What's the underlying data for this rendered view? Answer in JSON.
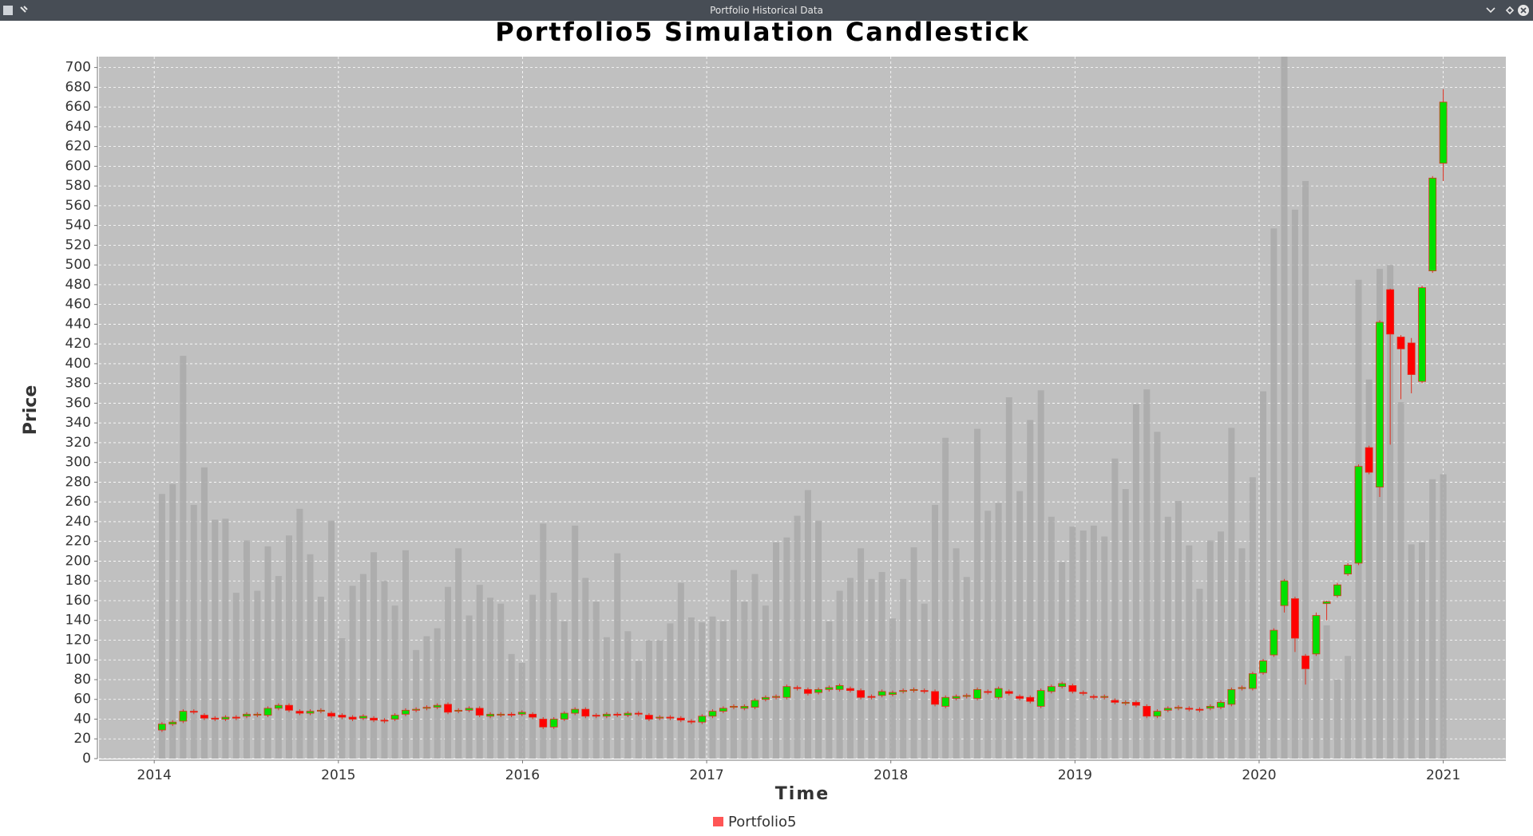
{
  "window": {
    "title": "Portfolio Historical Data"
  },
  "chart_data": {
    "type": "candlestick",
    "title": "Portfolio5 Simulation Candlestick",
    "x_label": "Time",
    "y_label": "Price",
    "x": [
      2014.042,
      2014.1,
      2014.157,
      2014.215,
      2014.272,
      2014.33,
      2014.387,
      2014.445,
      2014.502,
      2014.56,
      2014.617,
      2014.675,
      2014.732,
      2014.79,
      2014.847,
      2014.905,
      2014.962,
      2015.02,
      2015.077,
      2015.135,
      2015.192,
      2015.25,
      2015.307,
      2015.365,
      2015.422,
      2015.48,
      2015.537,
      2015.595,
      2015.652,
      2015.71,
      2015.767,
      2015.825,
      2015.882,
      2015.94,
      2015.997,
      2016.055,
      2016.112,
      2016.17,
      2016.227,
      2016.285,
      2016.342,
      2016.4,
      2016.457,
      2016.515,
      2016.572,
      2016.63,
      2016.687,
      2016.745,
      2016.802,
      2016.86,
      2016.917,
      2016.975,
      2017.032,
      2017.09,
      2017.147,
      2017.205,
      2017.262,
      2017.32,
      2017.377,
      2017.435,
      2017.492,
      2017.55,
      2017.607,
      2017.665,
      2017.722,
      2017.78,
      2017.837,
      2017.895,
      2017.952,
      2018.01,
      2018.067,
      2018.125,
      2018.182,
      2018.24,
      2018.297,
      2018.355,
      2018.412,
      2018.47,
      2018.527,
      2018.585,
      2018.642,
      2018.7,
      2018.757,
      2018.815,
      2018.872,
      2018.93,
      2018.987,
      2019.045,
      2019.102,
      2019.16,
      2019.217,
      2019.275,
      2019.332,
      2019.39,
      2019.447,
      2019.505,
      2019.562,
      2019.62,
      2019.677,
      2019.735,
      2019.792,
      2019.85,
      2019.907,
      2019.965,
      2020.022,
      2020.08,
      2020.137,
      2020.195,
      2020.252,
      2020.31,
      2020.367,
      2020.425,
      2020.482,
      2020.54,
      2020.597,
      2020.655,
      2020.712,
      2020.77,
      2020.827,
      2020.885,
      2020.942,
      2021
    ],
    "xlim": [
      2013.7,
      2021.34
    ],
    "xticks": [
      2014,
      2015,
      2016,
      2017,
      2018,
      2019,
      2020,
      2021
    ],
    "ylim": [
      0,
      711
    ],
    "yticks": [
      0,
      20,
      40,
      60,
      80,
      100,
      120,
      140,
      160,
      180,
      200,
      220,
      240,
      260,
      280,
      300,
      320,
      340,
      360,
      380,
      400,
      420,
      440,
      460,
      480,
      500,
      520,
      540,
      560,
      580,
      600,
      620,
      640,
      660,
      680,
      700
    ],
    "grid": true,
    "series": [
      {
        "name": "Portfolio5",
        "color": "#ff5555",
        "up_color": "#00e000",
        "down_color": "#ff0000",
        "outline_color": "#e03020",
        "volume_color": "#a9a9a9",
        "open": [
          29,
          35,
          38,
          48,
          44,
          41,
          40,
          42,
          43,
          44,
          44,
          51,
          54,
          48,
          46,
          48,
          46,
          44,
          42,
          41,
          41,
          39,
          40,
          45,
          49,
          51,
          52,
          55,
          48,
          49,
          51,
          43,
          44,
          45,
          45,
          45,
          40,
          32,
          40,
          46,
          50,
          44,
          43,
          45,
          44,
          46,
          44,
          41,
          42,
          41,
          38,
          37,
          43,
          48,
          52,
          51,
          52,
          60,
          62,
          62,
          72,
          70,
          67,
          70,
          70,
          71,
          69,
          63,
          64,
          65,
          68,
          69,
          69,
          68,
          53,
          61,
          63,
          61,
          68,
          62,
          68,
          63,
          62,
          53,
          68,
          73,
          74,
          67,
          63,
          62,
          59,
          56,
          57,
          53,
          43,
          49,
          51,
          51,
          50,
          51,
          52,
          55,
          71,
          71,
          87,
          105,
          155,
          162,
          104,
          106,
          157,
          165,
          187,
          198,
          315,
          275,
          475,
          427,
          421,
          382,
          494,
          603
        ],
        "high": [
          37,
          39,
          50,
          50,
          46,
          43,
          44,
          44,
          47,
          47,
          53,
          56,
          56,
          50,
          50,
          51,
          48,
          46,
          44,
          45,
          43,
          41,
          46,
          51,
          52,
          54,
          56,
          57,
          51,
          53,
          53,
          47,
          47,
          47,
          49,
          47,
          42,
          42,
          48,
          52,
          52,
          46,
          47,
          47,
          48,
          48,
          46,
          44,
          44,
          43,
          40,
          45,
          50,
          53,
          55,
          55,
          61,
          64,
          65,
          75,
          74,
          72,
          72,
          74,
          76,
          73,
          71,
          65,
          70,
          69,
          71,
          72,
          71,
          70,
          64,
          65,
          66,
          72,
          70,
          73,
          70,
          65,
          64,
          71,
          75,
          78,
          76,
          69,
          65,
          65,
          61,
          59,
          59,
          55,
          50,
          53,
          54,
          53,
          52,
          55,
          59,
          72,
          74,
          88,
          101,
          132,
          182,
          164,
          106,
          148,
          160,
          178,
          198,
          298,
          317,
          444,
          476,
          429,
          426,
          479,
          590,
          678
        ],
        "low": [
          27,
          33,
          36,
          45,
          39,
          38,
          38,
          39,
          41,
          42,
          42,
          49,
          47,
          44,
          44,
          46,
          41,
          40,
          38,
          39,
          37,
          36,
          38,
          43,
          47,
          49,
          50,
          45,
          46,
          47,
          42,
          41,
          42,
          42,
          43,
          40,
          30,
          30,
          38,
          44,
          41,
          41,
          41,
          42,
          42,
          43,
          38,
          39,
          39,
          37,
          35,
          35,
          41,
          46,
          50,
          49,
          50,
          58,
          60,
          60,
          69,
          64,
          65,
          68,
          68,
          67,
          60,
          60,
          62,
          63,
          66,
          67,
          66,
          53,
          51,
          59,
          61,
          59,
          65,
          60,
          64,
          59,
          56,
          51,
          66,
          71,
          66,
          64,
          60,
          60,
          55,
          54,
          52,
          41,
          41,
          47,
          49,
          48,
          47,
          49,
          50,
          53,
          69,
          69,
          85,
          103,
          148,
          108,
          75,
          104,
          140,
          163,
          185,
          196,
          288,
          265,
          318,
          364,
          370,
          380,
          492,
          585
        ],
        "close": [
          35,
          37,
          48,
          47,
          41,
          40,
          42,
          41,
          45,
          45,
          51,
          54,
          49,
          46,
          48,
          49,
          43,
          42,
          40,
          43,
          39,
          38,
          44,
          49,
          50,
          52,
          54,
          47,
          49,
          51,
          44,
          45,
          45,
          44,
          47,
          42,
          32,
          40,
          46,
          50,
          43,
          43,
          45,
          44,
          46,
          45,
          40,
          42,
          41,
          39,
          37,
          43,
          48,
          51,
          53,
          53,
          59,
          62,
          63,
          73,
          71,
          66,
          70,
          72,
          74,
          69,
          62,
          62,
          68,
          67,
          69,
          70,
          68,
          55,
          62,
          63,
          64,
          70,
          67,
          71,
          66,
          61,
          58,
          69,
          73,
          76,
          68,
          66,
          62,
          63,
          57,
          57,
          54,
          43,
          48,
          51,
          52,
          50,
          49,
          53,
          57,
          70,
          72,
          86,
          99,
          130,
          180,
          122,
          91,
          145,
          159,
          176,
          196,
          296,
          290,
          442,
          430,
          415,
          389,
          477,
          588,
          665
        ],
        "volume": [
          268,
          278,
          408,
          257,
          295,
          242,
          243,
          168,
          221,
          170,
          215,
          185,
          226,
          253,
          207,
          164,
          241,
          122,
          175,
          187,
          209,
          180,
          155,
          211,
          110,
          124,
          132,
          174,
          213,
          145,
          176,
          163,
          157,
          106,
          97,
          166,
          238,
          168,
          139,
          236,
          183,
          159,
          123,
          208,
          129,
          99,
          120,
          120,
          137,
          178,
          143,
          138,
          144,
          139,
          191,
          159,
          187,
          155,
          219,
          224,
          246,
          272,
          241,
          139,
          170,
          183,
          213,
          182,
          189,
          142,
          182,
          214,
          157,
          257,
          325,
          213,
          184,
          334,
          251,
          259,
          366,
          271,
          343,
          373,
          245,
          199,
          235,
          231,
          236,
          225,
          304,
          273,
          359,
          374,
          331,
          245,
          261,
          216,
          172,
          221,
          230,
          335,
          213,
          285,
          372,
          537,
          760,
          556,
          585,
          140,
          135,
          80,
          104,
          485,
          384,
          496,
          500,
          361,
          217,
          219,
          283,
          288
        ]
      }
    ]
  }
}
